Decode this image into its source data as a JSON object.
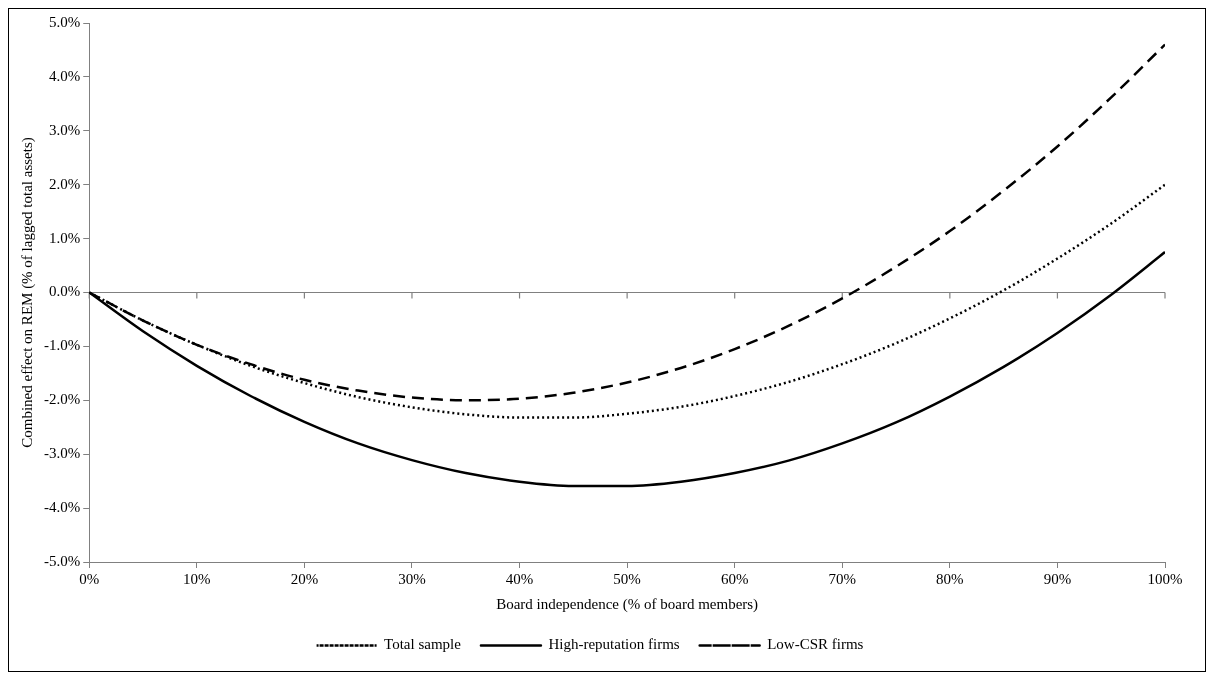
{
  "chart_data": {
    "type": "line",
    "xlabel": "Board independence (% of board members)",
    "ylabel": "Combined effect on REM (% of lagged total assets)",
    "x": [
      0,
      5,
      10,
      15,
      20,
      25,
      30,
      35,
      40,
      45,
      50,
      55,
      60,
      65,
      70,
      75,
      80,
      85,
      90,
      95,
      100
    ],
    "xlim": [
      0,
      100
    ],
    "xticks": [
      {
        "value": 0,
        "label": "0%"
      },
      {
        "value": 10,
        "label": "10%"
      },
      {
        "value": 20,
        "label": "20%"
      },
      {
        "value": 30,
        "label": "30%"
      },
      {
        "value": 40,
        "label": "40%"
      },
      {
        "value": 50,
        "label": "50%"
      },
      {
        "value": 60,
        "label": "60%"
      },
      {
        "value": 70,
        "label": "70%"
      },
      {
        "value": 80,
        "label": "80%"
      },
      {
        "value": 90,
        "label": "90%"
      },
      {
        "value": 100,
        "label": "100%"
      }
    ],
    "ylim": [
      -5,
      5
    ],
    "yticks": [
      {
        "value": -5,
        "label": "-5.0%"
      },
      {
        "value": -4,
        "label": "-4.0%"
      },
      {
        "value": -3,
        "label": "-3.0%"
      },
      {
        "value": -2,
        "label": "-2.0%"
      },
      {
        "value": -1,
        "label": "-1.0%"
      },
      {
        "value": 0,
        "label": "0.0%"
      },
      {
        "value": 1,
        "label": "1.0%"
      },
      {
        "value": 2,
        "label": "2.0%"
      },
      {
        "value": 3,
        "label": "3.0%"
      },
      {
        "value": 4,
        "label": "4.0%"
      },
      {
        "value": 5,
        "label": "5.0%"
      }
    ],
    "series": [
      {
        "name": "Total sample",
        "color": "#000000",
        "line_style": "dotted",
        "values": [
          0,
          -0.52,
          -0.97,
          -1.36,
          -1.68,
          -1.94,
          -2.13,
          -2.26,
          -2.32,
          -2.32,
          -2.25,
          -2.12,
          -1.92,
          -1.66,
          -1.33,
          -0.94,
          -0.48,
          0.04,
          0.63,
          1.28,
          2.0
        ]
      },
      {
        "name": "High-reputation firms",
        "color": "#000000",
        "line_style": "solid",
        "values": [
          0,
          -0.72,
          -1.36,
          -1.92,
          -2.4,
          -2.8,
          -3.11,
          -3.35,
          -3.51,
          -3.59,
          -3.59,
          -3.51,
          -3.35,
          -3.12,
          -2.8,
          -2.41,
          -1.93,
          -1.38,
          -0.75,
          -0.04,
          0.75
        ]
      },
      {
        "name": "Low-CSR firms",
        "color": "#000000",
        "line_style": "dashed",
        "values": [
          0,
          -0.52,
          -0.97,
          -1.33,
          -1.62,
          -1.82,
          -1.95,
          -2.0,
          -1.97,
          -1.86,
          -1.67,
          -1.4,
          -1.05,
          -0.62,
          -0.11,
          0.48,
          1.14,
          1.89,
          2.71,
          3.62,
          4.6
        ]
      }
    ],
    "ref_lines": [
      {
        "axis": "y",
        "value": 0,
        "color": "#808080"
      }
    ],
    "grid": false,
    "legend": "bottom",
    "marker": "none"
  }
}
